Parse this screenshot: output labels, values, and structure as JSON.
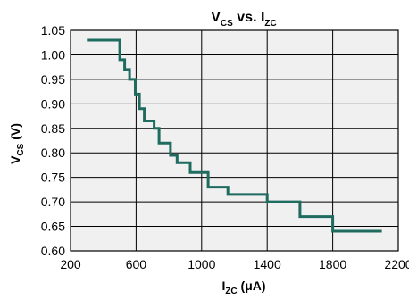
{
  "chart_data": {
    "type": "line",
    "title": {
      "main": "V",
      "sub": "CS",
      "mid": " vs. I",
      "sub2": "ZC"
    },
    "xlabel": {
      "main": "I",
      "sub": "ZC",
      "rest": " (μA)"
    },
    "ylabel": {
      "main": "V",
      "sub": "CS",
      "rest": " (V)"
    },
    "xlim": [
      200,
      2200
    ],
    "ylim": [
      0.6,
      1.05
    ],
    "x_ticks": [
      "200",
      "600",
      "1000",
      "1400",
      "1800",
      "2200"
    ],
    "y_ticks": [
      "0.60",
      "0.65",
      "0.70",
      "0.75",
      "0.80",
      "0.85",
      "0.90",
      "0.95",
      "1.00",
      "1.05"
    ],
    "grid": true,
    "line_color": "#1f6b5f",
    "plot_background": "#f0f0f0",
    "series": [
      {
        "style": "step",
        "points": [
          [
            300,
            1.03
          ],
          [
            500,
            1.03
          ],
          [
            500,
            0.99
          ],
          [
            530,
            0.99
          ],
          [
            530,
            0.97
          ],
          [
            560,
            0.97
          ],
          [
            560,
            0.95
          ],
          [
            595,
            0.95
          ],
          [
            595,
            0.92
          ],
          [
            620,
            0.92
          ],
          [
            620,
            0.89
          ],
          [
            650,
            0.89
          ],
          [
            650,
            0.865
          ],
          [
            710,
            0.865
          ],
          [
            710,
            0.85
          ],
          [
            740,
            0.85
          ],
          [
            740,
            0.82
          ],
          [
            810,
            0.82
          ],
          [
            810,
            0.795
          ],
          [
            850,
            0.795
          ],
          [
            850,
            0.78
          ],
          [
            930,
            0.78
          ],
          [
            930,
            0.76
          ],
          [
            1040,
            0.76
          ],
          [
            1040,
            0.73
          ],
          [
            1160,
            0.73
          ],
          [
            1160,
            0.715
          ],
          [
            1400,
            0.715
          ],
          [
            1400,
            0.7
          ],
          [
            1600,
            0.7
          ],
          [
            1600,
            0.67
          ],
          [
            1800,
            0.67
          ],
          [
            1800,
            0.64
          ],
          [
            2100,
            0.64
          ]
        ]
      }
    ]
  }
}
